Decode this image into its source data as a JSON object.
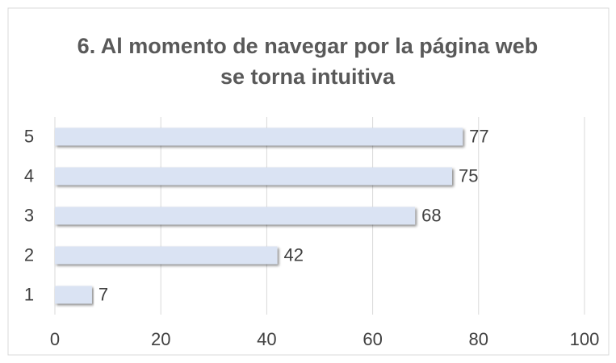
{
  "chart_data": {
    "type": "bar",
    "orientation": "horizontal",
    "title": "6. Al momento de navegar por la página web se torna intuitiva",
    "categories": [
      "1",
      "2",
      "3",
      "4",
      "5"
    ],
    "values": [
      7,
      42,
      68,
      75,
      77
    ],
    "color": "#dae3f3",
    "xlim": [
      0,
      100
    ],
    "xticks": [
      0,
      20,
      40,
      60,
      80,
      100
    ],
    "grid": true
  }
}
